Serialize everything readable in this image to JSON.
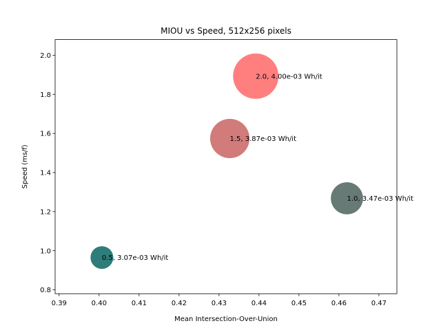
{
  "chart_data": {
    "type": "scatter",
    "title": "MIOU vs Speed, 512x256 pixels",
    "xlabel": "Mean Intersection-Over-Union",
    "ylabel": "Speed (ms/f)",
    "xlim": [
      0.389,
      0.4745
    ],
    "ylim": [
      0.78,
      2.08
    ],
    "xticks": [
      "0.39",
      "0.40",
      "0.41",
      "0.42",
      "0.43",
      "0.44",
      "0.45",
      "0.46",
      "0.47"
    ],
    "yticks": [
      "0.8",
      "1.0",
      "1.2",
      "1.4",
      "1.6",
      "1.8",
      "2.0"
    ],
    "grid": false,
    "points": [
      {
        "x": 0.4007,
        "y": 0.965,
        "label": "0.5, 3.07e-03 Wh/it",
        "color": "#2e7d7b",
        "size": 1.0
      },
      {
        "x": 0.462,
        "y": 1.268,
        "label": "1.0, 3.47e-03 Wh/it",
        "color": "#677a76",
        "size": 2.0
      },
      {
        "x": 0.4327,
        "y": 1.574,
        "label": "1.5, 3.87e-03 Wh/it",
        "color": "#d17b7b",
        "size": 3.0
      },
      {
        "x": 0.4392,
        "y": 1.893,
        "label": "2.0, 4.00e-03 Wh/it",
        "color": "#ff7f7f",
        "size": 4.0
      }
    ]
  }
}
